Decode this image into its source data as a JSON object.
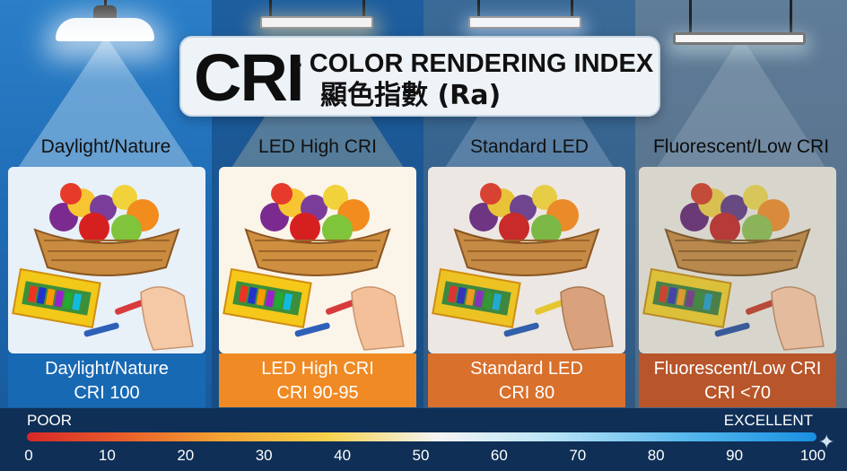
{
  "title": {
    "main": "CRI",
    "subtitle": "- COLOR RENDERING INDEX",
    "chinese": "顯色指數 (Ra)"
  },
  "columns": [
    {
      "label": "Daylight/Nature",
      "caption_line1": "Daylight/Nature",
      "caption_line2": "CRI 100"
    },
    {
      "label": "LED High CRI",
      "caption_line1": "LED High CRI",
      "caption_line2": "CRI 90-95"
    },
    {
      "label": "Standard LED",
      "caption_line1": "Standard LED",
      "caption_line2": "CRI 80"
    },
    {
      "label": "Fluorescent/Low CRI",
      "caption_line1": "Fluorescent/Low CRI",
      "caption_line2": "CRI <70"
    }
  ],
  "scale": {
    "poor_label": "POOR",
    "excellent_label": "EXCELLENT",
    "ticks": [
      "0",
      "10",
      "20",
      "30",
      "40",
      "50",
      "60",
      "70",
      "80",
      "90",
      "100"
    ]
  },
  "colors": {
    "daylight_caption": "#1869b3",
    "led_high_caption": "#f08a24",
    "standard_led_caption": "#d9702c",
    "fluorescent_caption": "#b8552a"
  },
  "icons": [
    "pendant-lamp-icon",
    "panel-light-icon",
    "fluorescent-tube-icon",
    "fruit-basket-icon",
    "crayon-box-icon",
    "hand-icon",
    "sparkle-icon"
  ]
}
